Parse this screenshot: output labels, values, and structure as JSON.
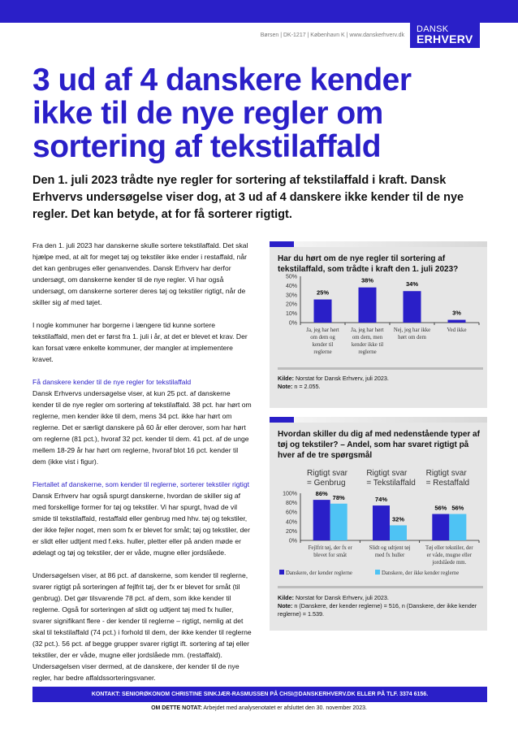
{
  "header": {
    "address": "Børsen | DK-1217 | København K | www.danskerhverv.dk",
    "logo_line1": "DANSK",
    "logo_line2": "ERHVERV"
  },
  "title": "3 ud af 4 danskere kender ikke til de nye regler om sortering af tekstilaffald",
  "lead": "Den 1. juli 2023 trådte nye regler for sortering af tekstilaffald i kraft. Dansk Erhvervs undersøgelse viser dog, at 3 ud af 4 danskere ikke kender til de nye regler. Det kan betyde, at for få sorterer rigtigt.",
  "body": {
    "p1": "Fra den 1. juli 2023 har danskerne skulle sortere tekstilaffald. Det skal hjælpe med, at alt for meget tøj og tekstiler ikke ender i restaffald, når det kan genbruges eller genanvendes. Dansk Erhverv har derfor undersøgt, om danskerne kender til de nye regler. Vi har også undersøgt, om danskerne sorterer deres tøj og tekstiler rigtigt, når de skiller sig af med tøjet.",
    "p2": "I nogle kommuner har borgerne i længere tid kunne sortere tekstilaffald, men det er først fra 1. juli i år, at det er blevet et krav. Der kan forsat være enkelte kommuner, der mangler at implementere kravet.",
    "h3": "Få danskere kender til de nye regler for tekstilaffald",
    "p3": "Dansk Erhvervs undersøgelse viser, at kun 25 pct. af danskerne kender til de nye regler om sortering af tekstilaffald. 38 pct. har hørt om reglerne, men kender ikke til dem, mens 34 pct. ikke har hørt om reglerne. Det er særligt danskere på 60 år eller derover, som har hørt om reglerne (81 pct.), hvoraf 32 pct. kender til dem. 41 pct. af de unge mellem 18-29 år har hørt om reglerne, hvoraf blot 16 pct. kender til dem (ikke vist i figur).",
    "h4": "Flertallet af danskerne, som kender til reglerne, sorterer tekstiler rigtigt",
    "p4": "Dansk Erhverv har også spurgt danskerne, hvordan de skiller sig af med forskellige former for tøj og tekstiler. Vi har spurgt, hvad de vil smide til tekstilaffald, restaffald eller genbrug med hhv. tøj og tekstiler, der ikke fejler noget, men som fx er blevet for småt; tøj og tekstiler, der er slidt eller udtjent med f.eks. huller, pletter eller på anden møde er ødelagt og tøj og tekstiler, der er våde, mugne eller jordslåede.",
    "p5": "Undersøgelsen viser, at 86 pct. af danskerne, som kender til reglerne, svarer rigtigt på sorteringen af fejlfrit tøj, der fx er blevet for småt (til genbrug). Det gør tilsvarende 78 pct. af dem, som ikke kender til reglerne. Også for sorteringen af slidt og udtjent tøj med fx huller, svarer signifikant flere - der kender til reglerne – rigtigt, nemlig at det skal til tekstilaffald (74 pct.) i forhold til dem, der ikke kender til reglerne (32 pct.). 56 pct. af begge grupper svarer rigtigt ift. sortering af tøj eller tekstiler, der er våde, mugne eller jordslåede mm. (restaffald). Undersøgelsen viser dermed, at de danskere, der kender til de nye regler, har bedre affaldssorteringsvaner."
  },
  "chart_data": [
    {
      "type": "bar",
      "title": "Har du hørt om de nye regler til sortering af tekstilaffald, som trådte i kraft den 1. juli 2023?",
      "categories": [
        "Ja, jeg har hørt om dem og kender til reglerne",
        "Ja, jeg har hørt om dem, men kender ikke til reglerne",
        "Nej, jeg har ikke hørt om dem",
        "Ved ikke"
      ],
      "values": [
        25,
        38,
        34,
        3
      ],
      "value_labels": [
        "25%",
        "38%",
        "34%",
        "3%"
      ],
      "yticks": [
        "0%",
        "10%",
        "20%",
        "30%",
        "40%",
        "50%"
      ],
      "ylim": [
        0,
        50
      ],
      "color": "#2a1fc8",
      "source_label": "Kilde:",
      "source": " Norstat for Dansk Erhverv, juli 2023.",
      "note_label": "Note:",
      "note": " n = 2.055."
    },
    {
      "type": "bar",
      "title": "Hvordan skiller du dig af med nedenstående typer af tøj og tekstiler? – Andel, som har svaret rigtigt på hver af de tre spørgsmål",
      "group_headers": [
        [
          "Rigtigt svar",
          "= Genbrug"
        ],
        [
          "Rigtigt svar",
          "= Tekstilaffald"
        ],
        [
          "Rigtigt svar",
          "= Restaffald"
        ]
      ],
      "categories": [
        [
          "Fejlfrit tøj, der fx er",
          "blevet for småt"
        ],
        [
          "Slidt og udtjent tøj",
          "med fx huller"
        ],
        [
          "Tøj eller tekstiler, der",
          "er våde, mugne eller",
          "jordslåede mm."
        ]
      ],
      "series": [
        {
          "name": "Danskere, der kender reglerne",
          "values": [
            86,
            74,
            56
          ],
          "labels": [
            "86%",
            "74%",
            "56%"
          ],
          "color": "#2a1fc8"
        },
        {
          "name": "Danskere, der ikke kender reglerne",
          "values": [
            78,
            32,
            56
          ],
          "labels": [
            "78%",
            "32%",
            "56%"
          ],
          "color": "#4ec3f4"
        }
      ],
      "yticks": [
        "0%",
        "20%",
        "40%",
        "60%",
        "80%",
        "100%"
      ],
      "ylim": [
        0,
        100
      ],
      "source_label": "Kilde:",
      "source": " Norstat for Dansk Erhverv, juli 2023.",
      "note_label": "Note:",
      "note": " n (Danskere, der kender reglerne) = 516, n (Danskere, der ikke kender reglerne) = 1.539."
    }
  ],
  "chart1_cat_lines": [
    [
      "Ja, jeg har hørt",
      "om dem og",
      "kender til",
      "reglerne"
    ],
    [
      "Ja, jeg har hørt",
      "om dem, men",
      "kender ikke til",
      "reglerne"
    ],
    [
      "Nej, jeg har ikke",
      "hørt om dem"
    ],
    [
      "Ved ikke"
    ]
  ],
  "footer": {
    "contact": "KONTAKT:  SENIORØKONOM CHRISTINE SINKJÆR-RASMUSSEN PÅ CHSI@DANSKERHVERV.DK ELLER PÅ TLF. 3374 6156.",
    "note_label": "OM DETTE NOTAT:",
    "note": " Arbejdet med analysenotatet er afsluttet den 30. november 2023."
  }
}
